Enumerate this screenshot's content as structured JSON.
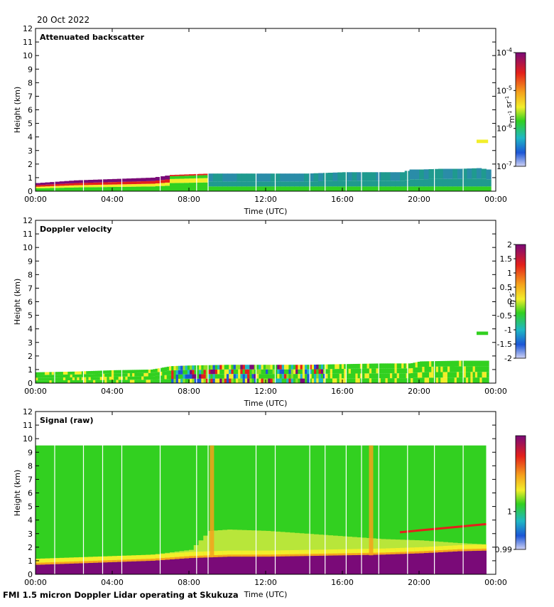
{
  "date_label": "20 Oct 2022",
  "footer": "FMI 1.5 micron Doppler Lidar operating at Skukuza",
  "colors": {
    "background": "#ffffff",
    "purple": "#7a0a78",
    "red": "#e4201a",
    "orange": "#f5a21c",
    "yellow": "#f2ee2a",
    "green": "#32d020",
    "teal": "#1f9a8e",
    "blue": "#1c56d6",
    "lightblue": "#cfd2f4"
  },
  "chart_data": [
    {
      "type": "heatmap",
      "title": "Attenuated backscatter",
      "xlabel": "Time (UTC)",
      "ylabel": "Height (km)",
      "x_ticks": [
        "00:00",
        "04:00",
        "08:00",
        "12:00",
        "16:00",
        "20:00",
        "00:00"
      ],
      "y_ticks": [
        "0",
        "1",
        "2",
        "3",
        "4",
        "5",
        "6",
        "7",
        "8",
        "9",
        "10",
        "11",
        "12"
      ],
      "xlim_hours": [
        0,
        24
      ],
      "ylim_km": [
        0,
        12
      ],
      "colorbar": {
        "ticks": [
          "10^-4",
          "10^-5",
          "10^-6",
          "10^-7"
        ],
        "unit": "m^-1 sr^-1",
        "scale": "log"
      },
      "boundary_layer_top_km": {
        "hours": [
          0,
          1,
          2,
          3,
          4,
          5,
          6,
          7,
          8,
          9,
          10,
          11,
          12,
          13,
          14,
          15,
          16,
          17,
          18,
          19,
          19.5,
          20,
          21,
          22,
          23,
          23.5
        ],
        "values": [
          0.6,
          0.7,
          0.8,
          0.85,
          0.9,
          0.95,
          1.0,
          1.2,
          1.25,
          1.3,
          1.3,
          1.3,
          1.3,
          1.3,
          1.3,
          1.35,
          1.4,
          1.4,
          1.4,
          1.4,
          1.6,
          1.6,
          1.65,
          1.65,
          1.7,
          1.6
        ]
      },
      "isolated_layer": {
        "hours": [
          23.0,
          23.6
        ],
        "km": [
          3.55,
          3.8
        ]
      }
    },
    {
      "type": "heatmap",
      "title": "Doppler velocity",
      "xlabel": "Time (UTC)",
      "ylabel": "Height (km)",
      "x_ticks": [
        "00:00",
        "04:00",
        "08:00",
        "12:00",
        "16:00",
        "20:00",
        "00:00"
      ],
      "y_ticks": [
        "0",
        "1",
        "2",
        "3",
        "4",
        "5",
        "6",
        "7",
        "8",
        "9",
        "10",
        "11",
        "12"
      ],
      "xlim_hours": [
        0,
        24
      ],
      "ylim_km": [
        0,
        12
      ],
      "colorbar": {
        "ticks": [
          "2",
          "1.5",
          "1",
          "0.5",
          "0",
          "-0.5",
          "-1",
          "-1.5",
          "-2"
        ],
        "unit": "m s^-1",
        "vmin": -2,
        "vmax": 2
      },
      "layer_top_km": {
        "hours": [
          0,
          2,
          4,
          6,
          7,
          8,
          10,
          12,
          14,
          16,
          18,
          19.5,
          20,
          22,
          23.5
        ],
        "values": [
          0.8,
          0.85,
          0.95,
          1.0,
          1.25,
          1.3,
          1.35,
          1.35,
          1.35,
          1.4,
          1.45,
          1.45,
          1.6,
          1.65,
          1.65
        ]
      },
      "isolated_layer": {
        "hours": [
          23.0,
          23.6
        ],
        "km": [
          3.55,
          3.8
        ]
      }
    },
    {
      "type": "heatmap",
      "title": "Signal (raw)",
      "xlabel": "Time (UTC)",
      "ylabel": "Height (km)",
      "x_ticks": [
        "00:00",
        "04:00",
        "08:00",
        "12:00",
        "16:00",
        "20:00",
        "00:00"
      ],
      "y_ticks": [
        "0",
        "1",
        "2",
        "3",
        "4",
        "5",
        "6",
        "7",
        "8",
        "9",
        "10",
        "11",
        "12"
      ],
      "xlim_hours": [
        0,
        24
      ],
      "ylim_km": [
        0,
        12
      ],
      "colorbar": {
        "ticks": [
          "1",
          "0.99"
        ],
        "vmin": 0.99,
        "vmax": 1.02
      },
      "data_top_km": 9.5,
      "strong_signal_top_km": {
        "hours": [
          0,
          2,
          4,
          6,
          8,
          10,
          12,
          14,
          16,
          18,
          20,
          22,
          23.5
        ],
        "values": [
          0.7,
          0.8,
          0.9,
          1.0,
          1.2,
          1.3,
          1.3,
          1.35,
          1.4,
          1.45,
          1.55,
          1.7,
          1.75
        ]
      },
      "warm_band_top_km": {
        "hours": [
          0,
          4,
          8,
          9,
          10,
          12,
          14,
          16,
          18,
          20,
          22,
          23.5
        ],
        "values": [
          0.9,
          1.1,
          1.8,
          3.2,
          3.3,
          3.2,
          3.0,
          2.8,
          2.6,
          2.5,
          2.3,
          2.2
        ]
      },
      "elevated_layer": {
        "hours": [
          19,
          23.5
        ],
        "km_start": [
          3.1,
          3.7
        ]
      },
      "vertical_features_hours": [
        9.2,
        17.5
      ]
    }
  ]
}
